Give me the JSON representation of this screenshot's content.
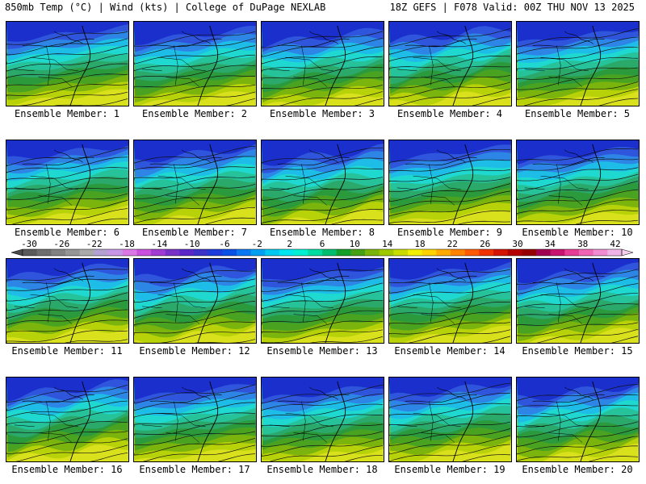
{
  "header": {
    "left": "850mb Temp (°C) | Wind (kts) | College of DuPage NEXLAB",
    "right": "18Z GEFS | F078 Valid: 00Z THU NOV 13 2025"
  },
  "panels": [
    {
      "label": "Ensemble Member: 1"
    },
    {
      "label": "Ensemble Member: 2"
    },
    {
      "label": "Ensemble Member: 3"
    },
    {
      "label": "Ensemble Member: 4"
    },
    {
      "label": "Ensemble Member: 5"
    },
    {
      "label": "Ensemble Member: 6"
    },
    {
      "label": "Ensemble Member: 7"
    },
    {
      "label": "Ensemble Member: 8"
    },
    {
      "label": "Ensemble Member: 9"
    },
    {
      "label": "Ensemble Member: 10"
    },
    {
      "label": "Ensemble Member: 11"
    },
    {
      "label": "Ensemble Member: 12"
    },
    {
      "label": "Ensemble Member: 13"
    },
    {
      "label": "Ensemble Member: 14"
    },
    {
      "label": "Ensemble Member: 15"
    },
    {
      "label": "Ensemble Member: 16"
    },
    {
      "label": "Ensemble Member: 17"
    },
    {
      "label": "Ensemble Member: 18"
    },
    {
      "label": "Ensemble Member: 19"
    },
    {
      "label": "Ensemble Member: 20"
    }
  ],
  "colorbar": {
    "tick_labels": [
      "-30",
      "-26",
      "-22",
      "-18",
      "-14",
      "-10",
      "-6",
      "-2",
      "2",
      "6",
      "10",
      "14",
      "18",
      "22",
      "26",
      "30",
      "34",
      "38",
      "42"
    ],
    "colors": [
      "#5a5a5a",
      "#6e6e6e",
      "#828282",
      "#969696",
      "#aaaaaa",
      "#b4a0d2",
      "#c896e6",
      "#dc78e6",
      "#c850dc",
      "#a03cd2",
      "#7832c8",
      "#5a28c8",
      "#3c32c8",
      "#1e3cdc",
      "#0a50e6",
      "#0a78f0",
      "#00a0f0",
      "#00c8f0",
      "#00e6f0",
      "#00f0d2",
      "#00dca0",
      "#00be6e",
      "#14a028",
      "#46a014",
      "#78b40a",
      "#a0c800",
      "#c8dc00",
      "#f0f000",
      "#ffd200",
      "#ffaa00",
      "#ff8200",
      "#ff5a00",
      "#f03200",
      "#d21400",
      "#b40000",
      "#960000",
      "#a00050",
      "#c8146e",
      "#e63c96",
      "#f064b4",
      "#f08cd2",
      "#f0b4e6"
    ]
  },
  "field_colors": [
    "#1a2fcc",
    "#2f55dd",
    "#2d86e6",
    "#1dbde8",
    "#1fd9d0",
    "#26c29a",
    "#2aa96a",
    "#2b9a3c",
    "#4aa320",
    "#7ab40c",
    "#b8d20a",
    "#d9e01c"
  ]
}
